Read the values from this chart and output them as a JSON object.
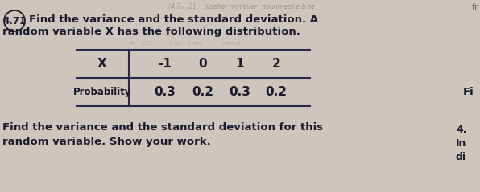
{
  "title_number": "4.71",
  "title_line1": "Find the variance and the standard deviation. A",
  "title_line2": "random variable X has the following distribution.",
  "x_label": "X",
  "x_values": [
    "-1",
    "0",
    "1",
    "2"
  ],
  "prob_label": "Probability",
  "prob_values": [
    "0.3",
    "0.2",
    "0.3",
    "0.2"
  ],
  "footer_line1": "Find the variance and the standard deviation for this",
  "footer_line2": "random variable. Show your work.",
  "right_letter_mid": "Fi",
  "right_text_bottom1": "4.",
  "right_text_bottom2": "In",
  "right_text_bottom3": "di",
  "top_right_text": "fr",
  "bg_color": "#cec6bc",
  "text_color": "#1a1a2e",
  "table_line_color": "#2a2a4a",
  "faint_color": "#a09888"
}
